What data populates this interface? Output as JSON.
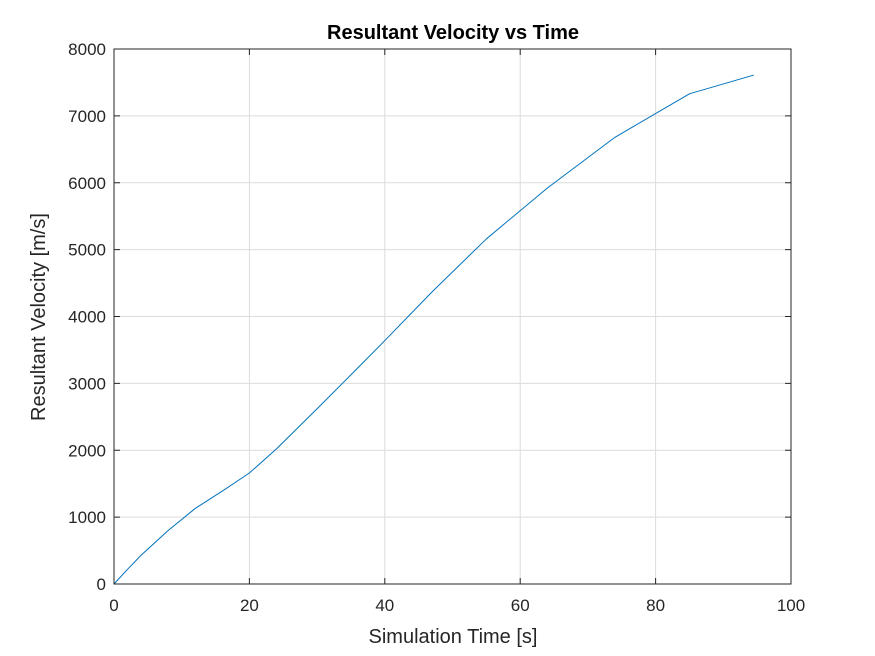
{
  "chart_data": {
    "type": "line",
    "title": "Resultant Velocity vs Time",
    "xlabel": "Simulation Time [s]",
    "ylabel": "Resultant Velocity [m/s]",
    "xlim": [
      0,
      100
    ],
    "ylim": [
      0,
      8000
    ],
    "xticks": [
      0,
      20,
      40,
      60,
      80,
      100
    ],
    "yticks": [
      0,
      1000,
      2000,
      3000,
      4000,
      5000,
      6000,
      7000,
      8000
    ],
    "grid": true,
    "colors": {
      "line": "#0072BD",
      "grid": "#dcdcdc",
      "axis": "#262626"
    },
    "series": [
      {
        "x": [
          0,
          2,
          4,
          8,
          12,
          16,
          20,
          24,
          30,
          36,
          40,
          47,
          55,
          64,
          74,
          85,
          94.5
        ],
        "y": [
          0,
          220,
          430,
          800,
          1130,
          1390,
          1660,
          2020,
          2620,
          3230,
          3640,
          4370,
          5160,
          5920,
          6680,
          7330,
          7610
        ]
      }
    ]
  }
}
